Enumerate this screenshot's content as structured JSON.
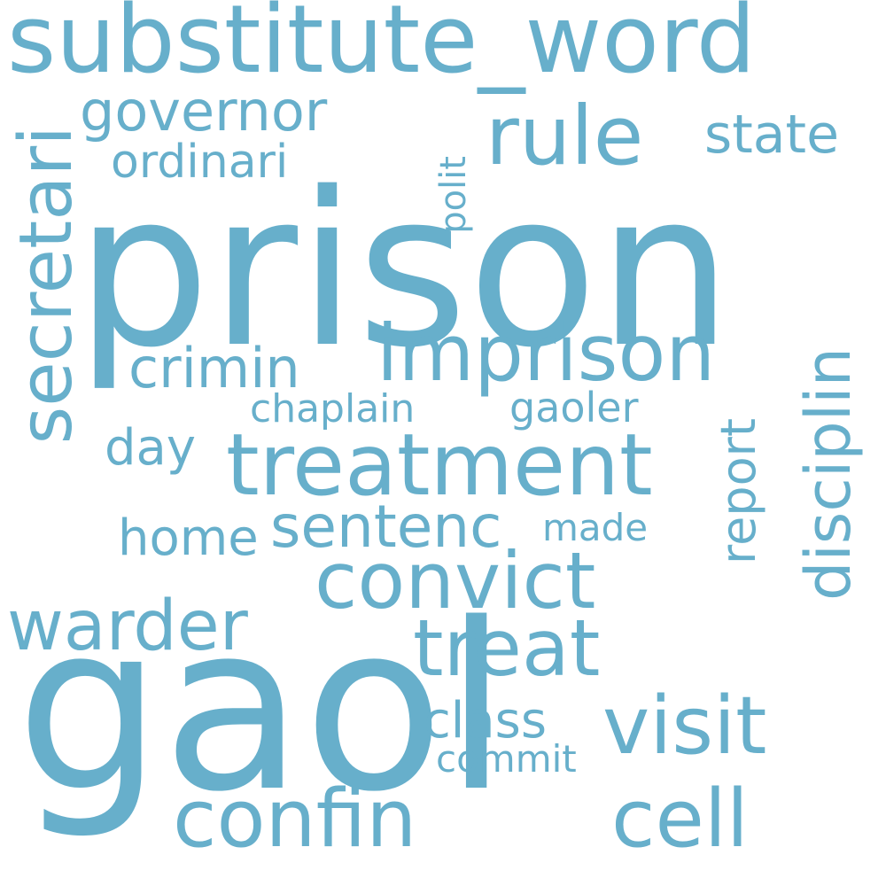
{
  "cloud": {
    "color": "#67afcb",
    "background": "#ffffff",
    "words": {
      "prison": "prison",
      "gaol": "gaol",
      "substitute_word": "substitute_word",
      "rule": "rule",
      "governor": "governor",
      "state": "state",
      "ordinari": "ordinari",
      "secretari": "secretari",
      "polit": "polit",
      "imprison": "imprison",
      "crimin": "crimin",
      "disciplin": "disciplin",
      "chaplain": "chaplain",
      "gaoler": "gaoler",
      "day": "day",
      "treatment": "treatment",
      "report": "report",
      "sentenc": "sentenc",
      "home": "home",
      "made": "made",
      "convict": "convict",
      "warder": "warder",
      "treat": "treat",
      "class": "class",
      "visit": "visit",
      "commit": "commit",
      "confin": "confin",
      "cell": "cell"
    }
  }
}
